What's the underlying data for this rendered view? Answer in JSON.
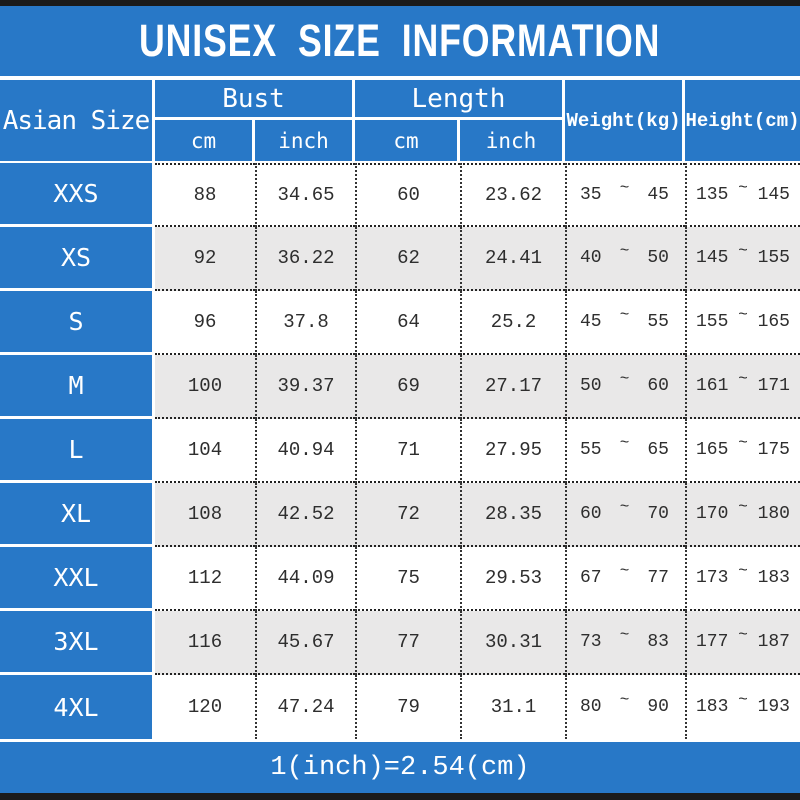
{
  "title": "UNISEX SIZE INFORMATION",
  "header": {
    "asian_size": "Asian Size",
    "bust": "Bust",
    "length": "Length",
    "bust_cm": "cm",
    "bust_inch": "inch",
    "length_cm": "cm",
    "length_inch": "inch",
    "weight": "Weight(kg)",
    "height": "Height(cm)"
  },
  "tilde": "~",
  "rows": [
    {
      "size": "XXS",
      "bust_cm": "88",
      "bust_inch": "34.65",
      "length_cm": "60",
      "length_inch": "23.62",
      "weight_min": "35",
      "weight_max": "45",
      "height_min": "135",
      "height_max": "145"
    },
    {
      "size": "XS",
      "bust_cm": "92",
      "bust_inch": "36.22",
      "length_cm": "62",
      "length_inch": "24.41",
      "weight_min": "40",
      "weight_max": "50",
      "height_min": "145",
      "height_max": "155"
    },
    {
      "size": "S",
      "bust_cm": "96",
      "bust_inch": "37.8",
      "length_cm": "64",
      "length_inch": "25.2",
      "weight_min": "45",
      "weight_max": "55",
      "height_min": "155",
      "height_max": "165"
    },
    {
      "size": "M",
      "bust_cm": "100",
      "bust_inch": "39.37",
      "length_cm": "69",
      "length_inch": "27.17",
      "weight_min": "50",
      "weight_max": "60",
      "height_min": "161",
      "height_max": "171"
    },
    {
      "size": "L",
      "bust_cm": "104",
      "bust_inch": "40.94",
      "length_cm": "71",
      "length_inch": "27.95",
      "weight_min": "55",
      "weight_max": "65",
      "height_min": "165",
      "height_max": "175"
    },
    {
      "size": "XL",
      "bust_cm": "108",
      "bust_inch": "42.52",
      "length_cm": "72",
      "length_inch": "28.35",
      "weight_min": "60",
      "weight_max": "70",
      "height_min": "170",
      "height_max": "180"
    },
    {
      "size": "XXL",
      "bust_cm": "112",
      "bust_inch": "44.09",
      "length_cm": "75",
      "length_inch": "29.53",
      "weight_min": "67",
      "weight_max": "77",
      "height_min": "173",
      "height_max": "183"
    },
    {
      "size": "3XL",
      "bust_cm": "116",
      "bust_inch": "45.67",
      "length_cm": "77",
      "length_inch": "30.31",
      "weight_min": "73",
      "weight_max": "83",
      "height_min": "177",
      "height_max": "187"
    },
    {
      "size": "4XL",
      "bust_cm": "120",
      "bust_inch": "47.24",
      "length_cm": "79",
      "length_inch": "31.1",
      "weight_min": "80",
      "weight_max": "90",
      "height_min": "183",
      "height_max": "193"
    }
  ],
  "footer_note": "1(inch)=2.54(cm)",
  "colors": {
    "blue": "#2878c7",
    "row_alt": "#e9e8e8",
    "bar": "#1b1b1b",
    "text": "#2e2e2e"
  }
}
